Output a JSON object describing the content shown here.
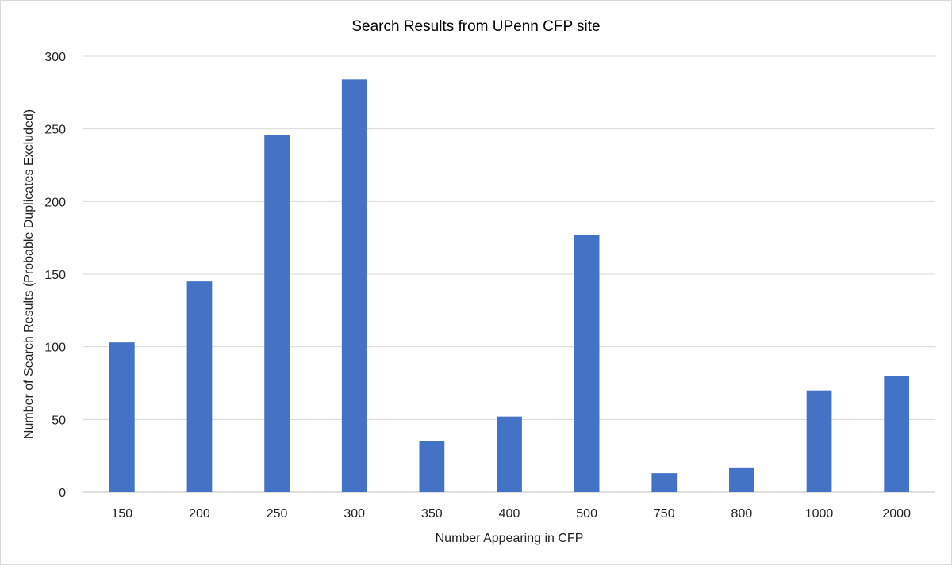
{
  "chart_data": {
    "type": "bar",
    "title": "Search Results from UPenn CFP site",
    "xlabel": "Number Appearing in CFP",
    "ylabel": "Number of Search Results (Probable Duplicates Excluded)",
    "categories": [
      "150",
      "200",
      "250",
      "300",
      "350",
      "400",
      "500",
      "750",
      "800",
      "1000",
      "2000"
    ],
    "values": [
      103,
      145,
      246,
      284,
      35,
      52,
      177,
      13,
      17,
      70,
      80
    ],
    "ylim": [
      0,
      300
    ],
    "yticks": [
      0,
      50,
      100,
      150,
      200,
      250,
      300
    ],
    "grid": true,
    "legend": "none",
    "bar_color": "#4472c4"
  }
}
